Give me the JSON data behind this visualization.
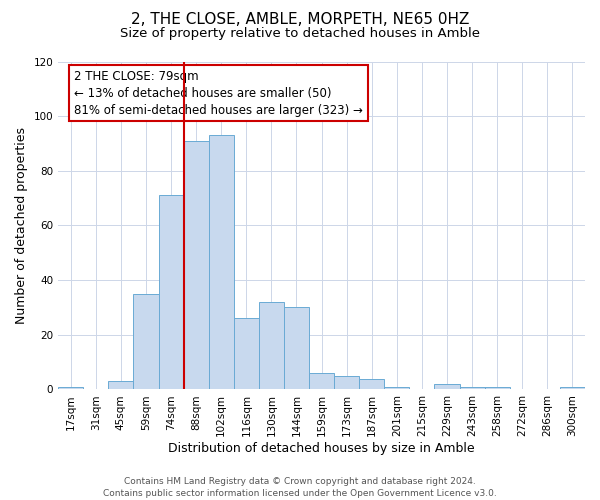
{
  "title": "2, THE CLOSE, AMBLE, MORPETH, NE65 0HZ",
  "subtitle": "Size of property relative to detached houses in Amble",
  "xlabel": "Distribution of detached houses by size in Amble",
  "ylabel": "Number of detached properties",
  "footer_line1": "Contains HM Land Registry data © Crown copyright and database right 2024.",
  "footer_line2": "Contains public sector information licensed under the Open Government Licence v3.0.",
  "bar_labels": [
    "17sqm",
    "31sqm",
    "45sqm",
    "59sqm",
    "74sqm",
    "88sqm",
    "102sqm",
    "116sqm",
    "130sqm",
    "144sqm",
    "159sqm",
    "173sqm",
    "187sqm",
    "201sqm",
    "215sqm",
    "229sqm",
    "243sqm",
    "258sqm",
    "272sqm",
    "286sqm",
    "300sqm"
  ],
  "bar_values": [
    1,
    0,
    3,
    35,
    71,
    91,
    93,
    26,
    32,
    30,
    6,
    5,
    4,
    1,
    0,
    2,
    1,
    1,
    0,
    0,
    1
  ],
  "bar_color": "#c8d9ee",
  "bar_edge_color": "#6aaad4",
  "bar_width": 1.0,
  "ylim": [
    0,
    120
  ],
  "yticks": [
    0,
    20,
    40,
    60,
    80,
    100,
    120
  ],
  "vline_x_idx": 4.5,
  "vline_color": "#cc0000",
  "annotation_text": "2 THE CLOSE: 79sqm\n← 13% of detached houses are smaller (50)\n81% of semi-detached houses are larger (323) →",
  "annotation_box_color": "#ffffff",
  "annotation_box_edge": "#cc0000",
  "bg_color": "#ffffff",
  "grid_color": "#cdd6e8",
  "title_fontsize": 11,
  "subtitle_fontsize": 9.5,
  "axis_label_fontsize": 9,
  "tick_fontsize": 7.5,
  "annotation_fontsize": 8.5,
  "footer_fontsize": 6.5
}
